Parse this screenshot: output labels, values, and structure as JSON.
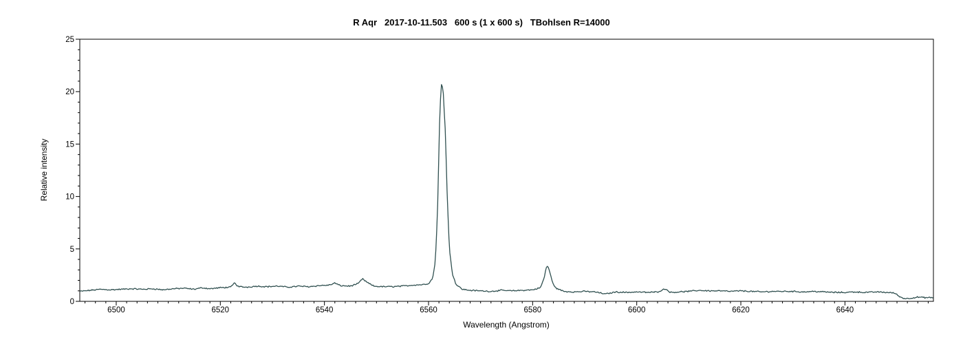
{
  "chart_data": {
    "type": "line",
    "title": "R Aqr   2017-10-11.503   600 s (1 x 600 s)   TBohlsen R=14000",
    "xlabel": "Wavelength (Angstrom)",
    "ylabel": "Relative intensity",
    "xlim": [
      6493,
      6657
    ],
    "ylim": [
      0,
      25
    ],
    "x_ticks": [
      6500,
      6520,
      6540,
      6560,
      6580,
      6600,
      6620,
      6640
    ],
    "y_ticks": [
      0,
      5,
      10,
      15,
      20,
      25
    ],
    "grid": false,
    "line_color": "#2f4f4f",
    "series": [
      {
        "x": [
          6493,
          6495,
          6497,
          6499,
          6501,
          6503,
          6505,
          6507,
          6509,
          6511,
          6513,
          6515,
          6516.5,
          6518,
          6520,
          6522,
          6522.7,
          6523.5,
          6525,
          6527,
          6529,
          6531,
          6533,
          6535,
          6537,
          6539,
          6541,
          6542,
          6543,
          6545,
          6546.5,
          6547.3,
          6548.2,
          6549.5,
          6551,
          6553,
          6555,
          6557,
          6559,
          6560,
          6560.8,
          6561.3,
          6561.7,
          6562.0,
          6562.2,
          6562.5,
          6562.8,
          6563.2,
          6563.6,
          6564.0,
          6564.6,
          6565.3,
          6566.5,
          6568,
          6570,
          6572,
          6574,
          6576,
          6578,
          6580,
          6581.5,
          6582.2,
          6582.6,
          6582.9,
          6583.3,
          6583.8,
          6584.5,
          6586,
          6588,
          6590,
          6592,
          6594,
          6596,
          6598,
          6600,
          6602,
          6604,
          6605.5,
          6606.5,
          6608,
          6610,
          6612,
          6614,
          6616,
          6618,
          6620,
          6622,
          6624,
          6626,
          6628,
          6630,
          6632,
          6634,
          6636,
          6638,
          6640,
          6642,
          6644,
          6646,
          6648,
          6649.5,
          6650.5,
          6651.5,
          6652.5,
          6654,
          6655.5,
          6657
        ],
        "y": [
          0.95,
          1.05,
          1.15,
          1.1,
          1.15,
          1.2,
          1.15,
          1.2,
          1.1,
          1.2,
          1.25,
          1.15,
          1.3,
          1.2,
          1.3,
          1.35,
          1.75,
          1.4,
          1.35,
          1.45,
          1.4,
          1.45,
          1.35,
          1.45,
          1.4,
          1.5,
          1.55,
          1.75,
          1.5,
          1.45,
          1.7,
          2.15,
          1.8,
          1.45,
          1.4,
          1.4,
          1.45,
          1.55,
          1.6,
          1.7,
          2.2,
          3.8,
          8.0,
          14.5,
          18.5,
          20.8,
          20.2,
          16.5,
          10.0,
          5.0,
          2.6,
          1.6,
          1.15,
          1.05,
          1.0,
          0.95,
          1.05,
          1.0,
          1.05,
          1.1,
          1.3,
          2.2,
          3.2,
          3.4,
          2.8,
          1.8,
          1.25,
          0.95,
          0.9,
          0.95,
          0.9,
          0.7,
          0.9,
          0.85,
          0.9,
          0.85,
          0.9,
          1.2,
          0.85,
          0.9,
          0.95,
          1.05,
          1.0,
          1.0,
          0.95,
          1.0,
          0.95,
          0.9,
          0.95,
          0.95,
          0.95,
          0.9,
          0.95,
          0.9,
          0.85,
          0.85,
          0.9,
          0.85,
          0.9,
          0.85,
          0.8,
          0.45,
          0.25,
          0.3,
          0.4,
          0.35,
          0.35
        ]
      }
    ]
  }
}
